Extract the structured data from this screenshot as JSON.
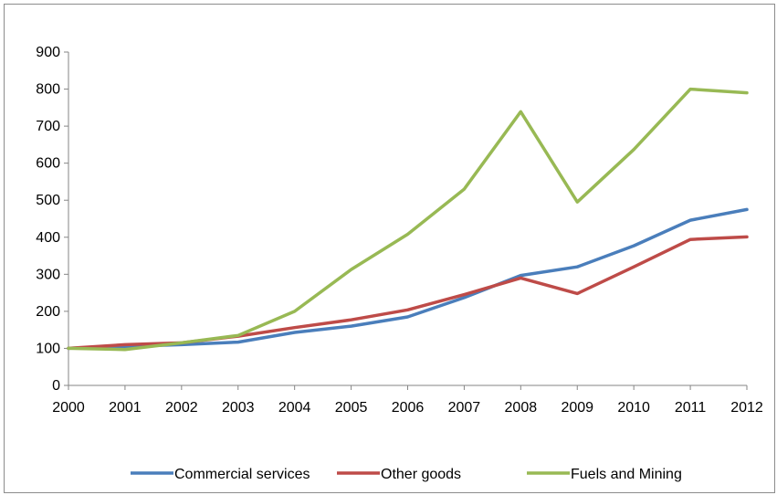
{
  "chart_data": {
    "type": "line",
    "title": "",
    "xlabel": "",
    "ylabel": "",
    "x": [
      "2000",
      "2001",
      "2002",
      "2003",
      "2004",
      "2005",
      "2006",
      "2007",
      "2008",
      "2009",
      "2010",
      "2011",
      "2012"
    ],
    "ylim": [
      0,
      900
    ],
    "yticks": [
      0,
      100,
      200,
      300,
      400,
      500,
      600,
      700,
      800,
      900
    ],
    "grid": false,
    "legend_position": "bottom",
    "series": [
      {
        "name": "Commercial services",
        "color": "#4a7ebb",
        "values": [
          100,
          105,
          110,
          117,
          143,
          160,
          185,
          237,
          297,
          320,
          377,
          446,
          475
        ]
      },
      {
        "name": "Other goods",
        "color": "#be4b48",
        "values": [
          100,
          110,
          115,
          133,
          156,
          177,
          204,
          245,
          290,
          248,
          320,
          394,
          401
        ]
      },
      {
        "name": "Fuels and Mining",
        "color": "#98b954",
        "values": [
          100,
          97,
          115,
          135,
          200,
          313,
          408,
          530,
          739,
          495,
          637,
          800,
          790
        ]
      }
    ]
  }
}
